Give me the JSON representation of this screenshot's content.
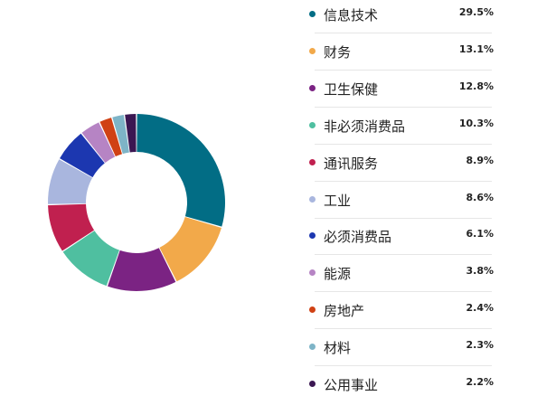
{
  "chart_data": {
    "type": "pie",
    "categories": [
      "信息技术",
      "财务",
      "卫生保健",
      "非必须消费品",
      "通讯服务",
      "工业",
      "必须消费品",
      "能源",
      "房地产",
      "材料",
      "公用事业"
    ],
    "values": [
      29.5,
      13.1,
      12.8,
      10.3,
      8.9,
      8.6,
      6.1,
      3.8,
      2.4,
      2.3,
      2.2
    ],
    "labels": [
      "29.5%",
      "13.1%",
      "12.8%",
      "10.3%",
      "8.9%",
      "8.6%",
      "6.1%",
      "3.8%",
      "2.4%",
      "2.3%",
      "2.2%"
    ],
    "colors": [
      "#026d85",
      "#f2a94a",
      "#7b2383",
      "#4fbfa0",
      "#c0204f",
      "#a9b6de",
      "#1c37b0",
      "#b684c4",
      "#d04114",
      "#7eb4c7",
      "#3b1752"
    ],
    "style": "donut",
    "legend": "right"
  }
}
